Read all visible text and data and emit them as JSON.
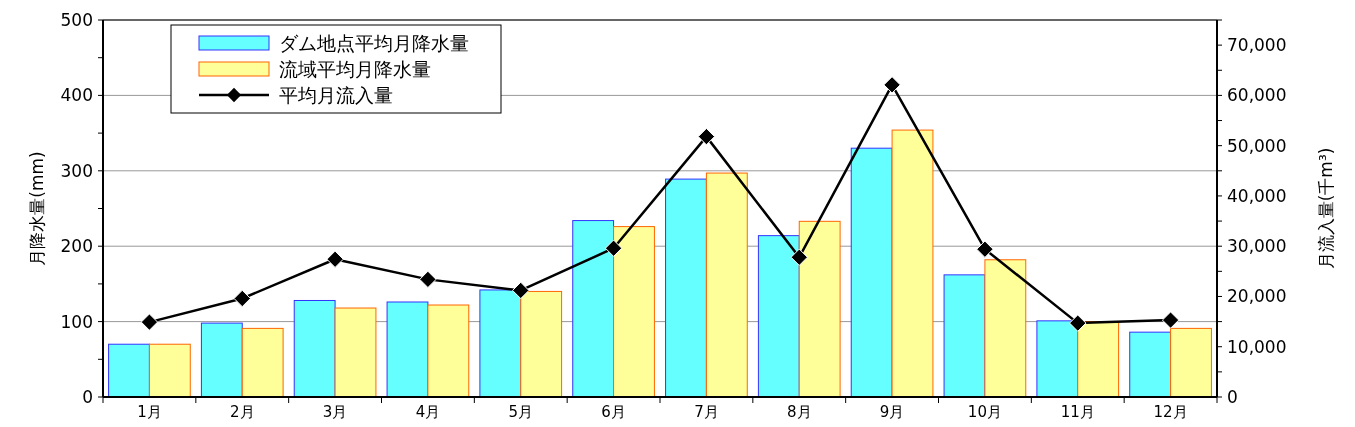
{
  "chart_data": {
    "type": "bar",
    "ylabel": "月降水量(mm)",
    "y2label": "月流入量(千m³)",
    "categories": [
      "1月",
      "2月",
      "3月",
      "4月",
      "5月",
      "6月",
      "7月",
      "8月",
      "9月",
      "10月",
      "11月",
      "12月"
    ],
    "series": [
      {
        "name": "ダム地点平均月降水量",
        "color": "#66ffff",
        "values": [
          70,
          98,
          128,
          126,
          142,
          234,
          289,
          214,
          330,
          162,
          101,
          86
        ]
      },
      {
        "name": "流域平均月降水量",
        "color": "#ffff99",
        "values": [
          70,
          91,
          118,
          122,
          140,
          226,
          297,
          233,
          354,
          182,
          100,
          91
        ]
      },
      {
        "name": "平均月流入量",
        "type": "line",
        "axis": "y2",
        "color": "#000000",
        "marker": "diamond",
        "values": [
          14900,
          19600,
          27400,
          23400,
          21200,
          29600,
          51800,
          27800,
          62100,
          29400,
          14700,
          15300
        ]
      }
    ],
    "ylim": [
      0,
      500
    ],
    "yticks": [
      0,
      {
        "value": 50,
        "label": null
      },
      100,
      {
        "value": 150,
        "label": null
      },
      200,
      {
        "value": 250,
        "label": null
      },
      300,
      {
        "value": 350,
        "label": null
      },
      400,
      {
        "value": 450,
        "label": null
      },
      500
    ],
    "y2lim": [
      0,
      75000
    ],
    "y2ticks": [
      0,
      {
        "value": 5000,
        "label": null
      },
      {
        "value": 10000,
        "label": "10,000"
      },
      {
        "value": 15000,
        "label": null
      },
      {
        "value": 20000,
        "label": "20,000"
      },
      {
        "value": 25000,
        "label": null
      },
      {
        "value": 30000,
        "label": "30,000"
      },
      {
        "value": 35000,
        "label": null
      },
      {
        "value": 40000,
        "label": "40,000"
      },
      {
        "value": 45000,
        "label": null
      },
      {
        "value": 50000,
        "label": "50,000"
      },
      {
        "value": 55000,
        "label": null
      },
      {
        "value": 60000,
        "label": "60,000"
      },
      {
        "value": 65000,
        "label": null
      },
      {
        "value": 70000,
        "label": "70,000"
      },
      {
        "value": 75000,
        "label": null
      }
    ],
    "grid": "y",
    "legend": "top left"
  }
}
